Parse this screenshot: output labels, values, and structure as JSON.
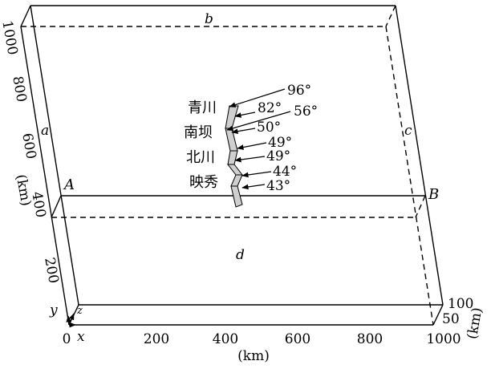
{
  "faces": {
    "top": "b",
    "left": "a",
    "right": "c",
    "bottom": "d"
  },
  "section_ends": {
    "left": "A",
    "right": "B"
  },
  "axes": {
    "x": {
      "symbol": "x",
      "unit": "(km)",
      "ticks": [
        "0",
        "200",
        "400",
        "600",
        "800",
        "1000"
      ]
    },
    "y": {
      "symbol": "y",
      "unit": "(km)",
      "ticks": [
        "200",
        "400",
        "600",
        "800",
        "1000"
      ]
    },
    "z": {
      "symbol": "z",
      "unit": "(km)",
      "ticks": [
        "50",
        "100"
      ]
    }
  },
  "places": [
    "青川",
    "南坝",
    "北川",
    "映秀"
  ],
  "dip_angles": [
    "96°",
    "82°",
    "56°",
    "50°",
    "49°",
    "49°",
    "44°",
    "43°"
  ]
}
